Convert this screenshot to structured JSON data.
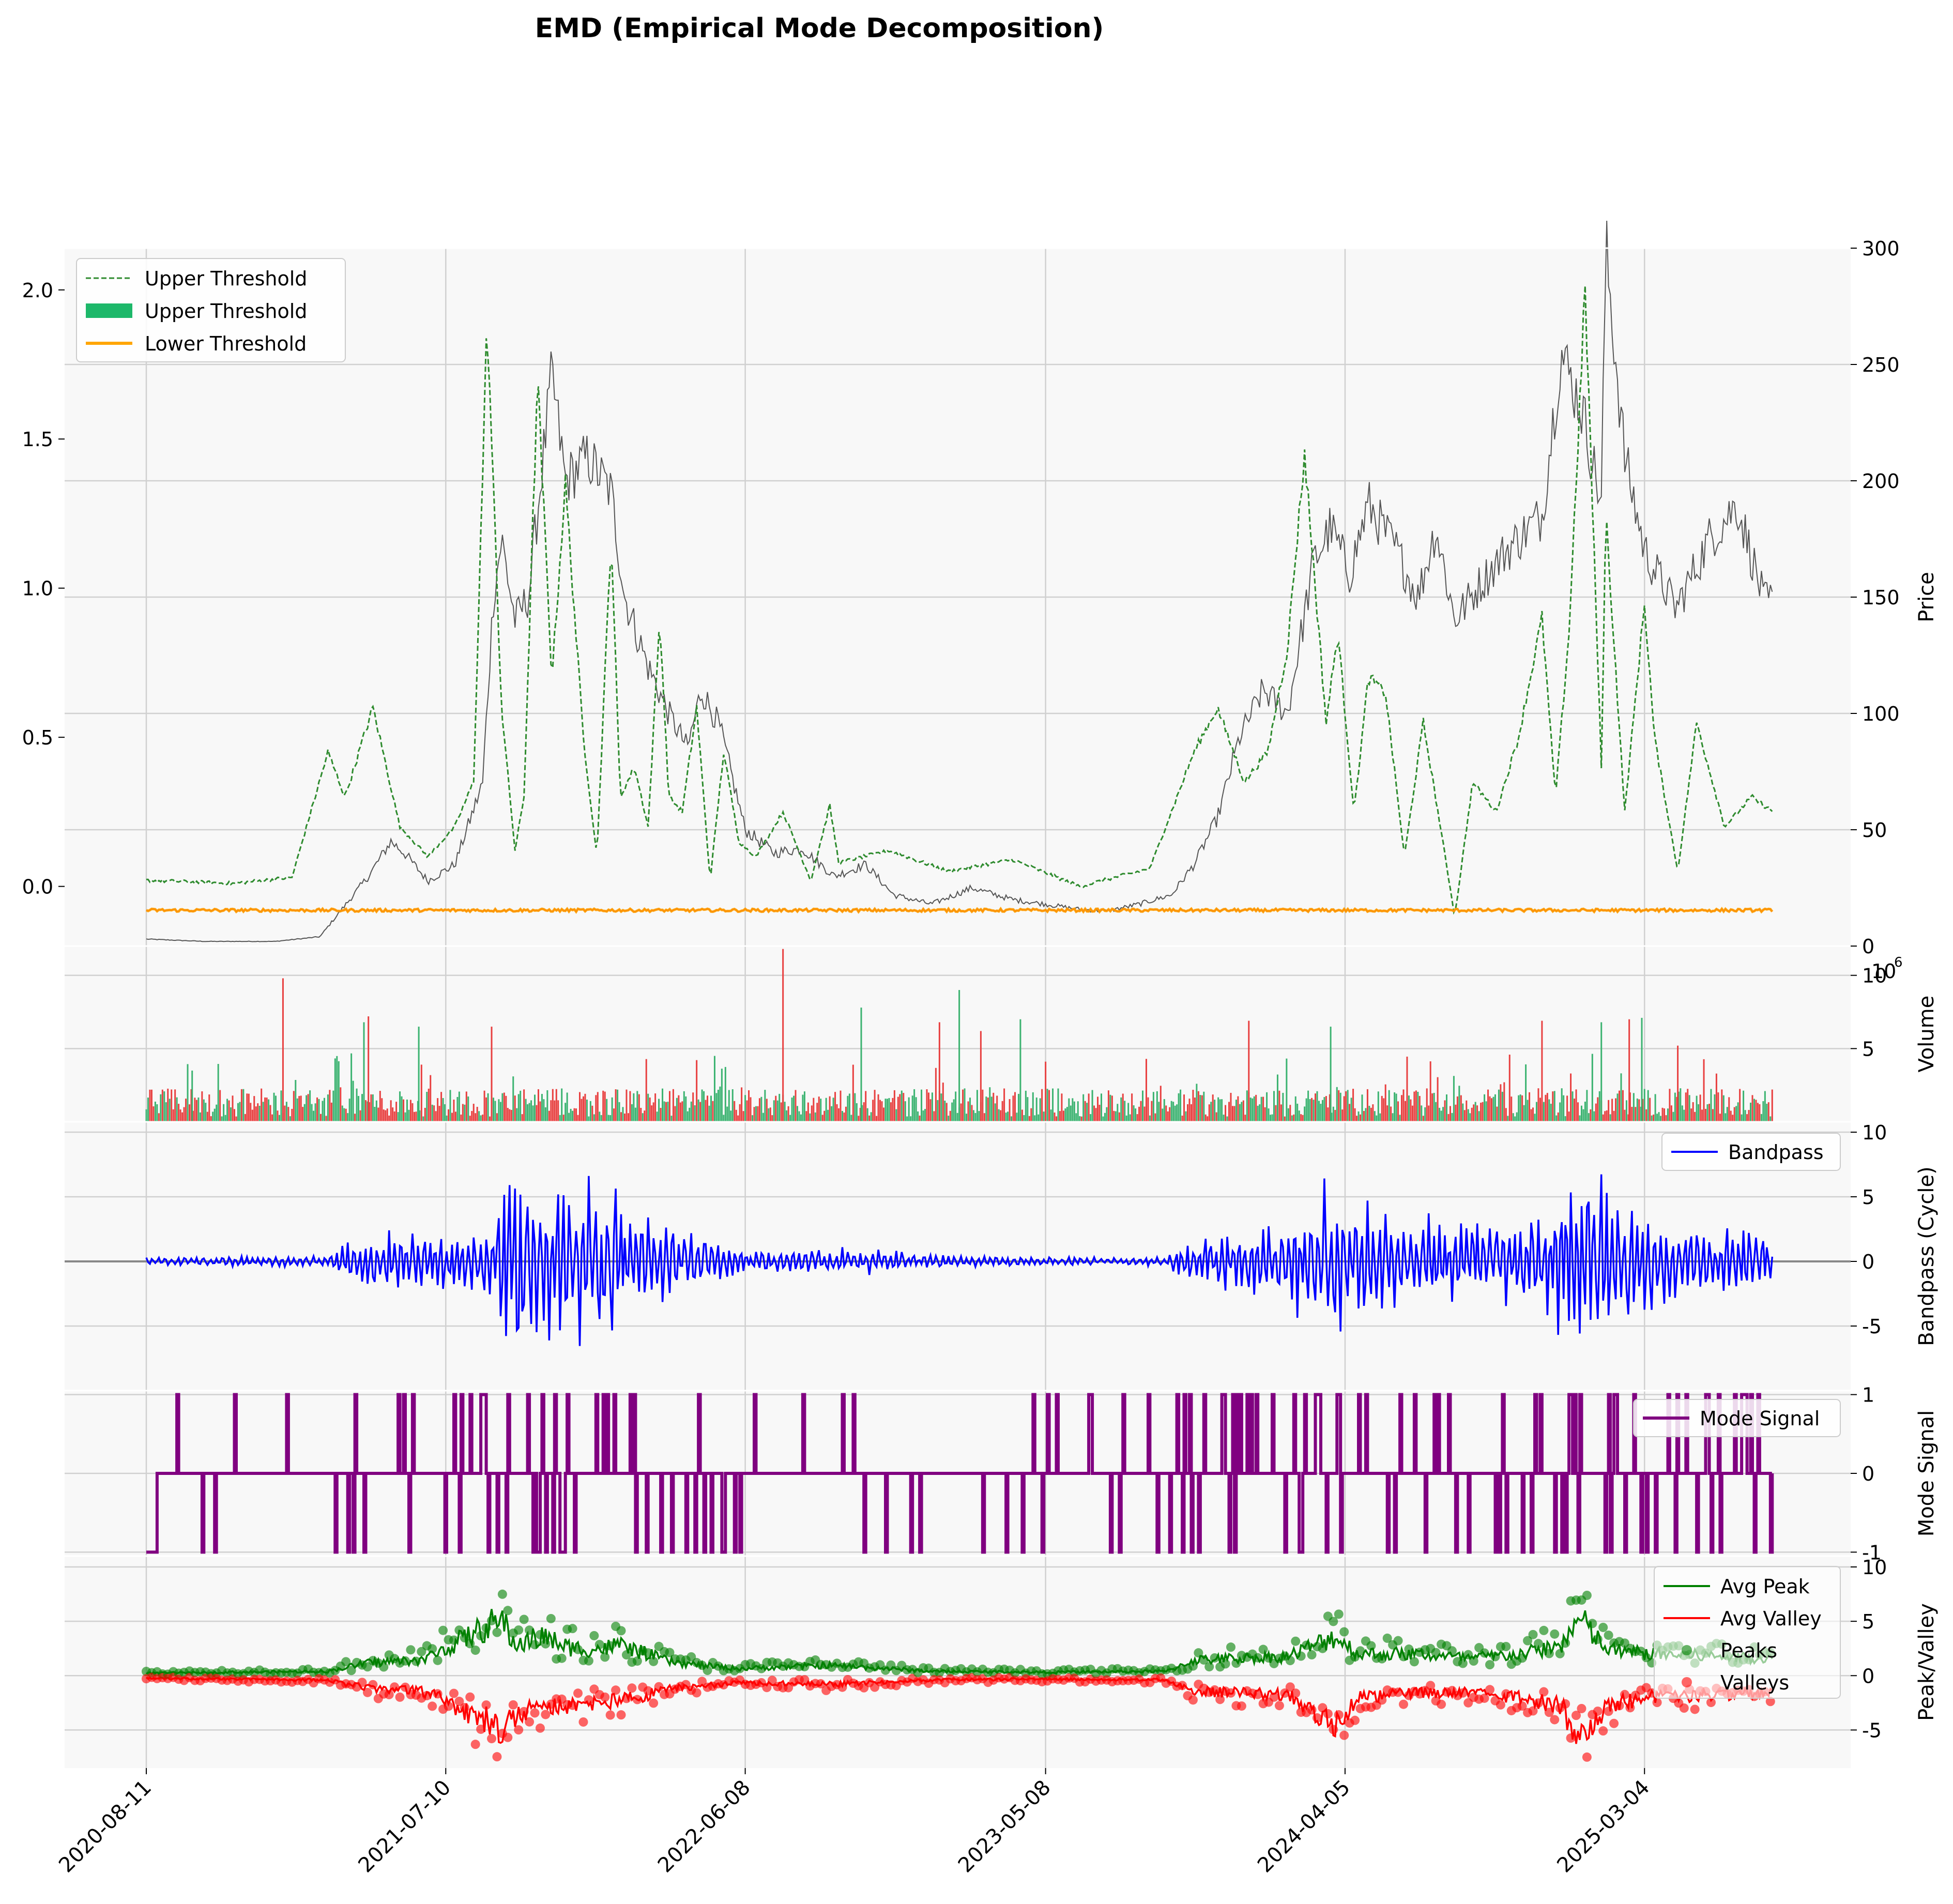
{
  "title": "EMD (Empirical Mode Decomposition)",
  "colors": {
    "panel_bg": "#f8f8f8",
    "grid": "#d0d0d0",
    "candle": "#555555",
    "threshold_green": "#2e8b2e",
    "threshold_fill": "#1db86a",
    "lower_orange": "#ffa500",
    "volume_up": "#3cb371",
    "volume_down": "#e84040",
    "bandpass": "#0000ff",
    "zero_line": "#888888",
    "mode_signal": "#800080",
    "peak": "#008000",
    "valley": "#ff0000"
  },
  "x_axis": {
    "ticks": [
      "2020-08-11",
      "2021-07-10",
      "2022-06-08",
      "2023-05-08",
      "2024-04-05",
      "2025-03-04"
    ]
  },
  "chart_data": [
    {
      "id": "price",
      "type": "line",
      "ylabel": "Price",
      "y_left_ticks": [
        "0.0",
        "0.5",
        "1.0",
        "1.5",
        "2.0"
      ],
      "y_right_ticks": [
        "0",
        "50",
        "100",
        "150",
        "200",
        "250",
        "300"
      ],
      "ylim_left": [
        -0.2,
        2.14
      ],
      "ylim_right": [
        0,
        300
      ],
      "legend": [
        "Upper Threshold",
        "Upper Threshold",
        "Lower Threshold"
      ],
      "legend_position": "top-left",
      "series": [
        {
          "name": "Price",
          "axis": "right",
          "x": [
            "2020-08-11",
            "2020-10-15",
            "2021-01-01",
            "2021-02-20",
            "2021-04-15",
            "2021-05-10",
            "2021-05-25",
            "2021-06-20",
            "2021-07-20",
            "2021-08-20",
            "2021-09-01",
            "2021-09-10",
            "2021-09-25",
            "2021-10-10",
            "2021-11-05",
            "2021-11-20",
            "2021-12-15",
            "2022-01-10",
            "2022-01-25",
            "2022-02-20",
            "2022-03-15",
            "2022-04-05",
            "2022-04-20",
            "2022-05-10",
            "2022-06-08",
            "2022-07-10",
            "2022-08-10",
            "2022-09-15",
            "2022-10-20",
            "2022-11-20",
            "2023-01-01",
            "2023-02-15",
            "2023-04-01",
            "2023-05-08",
            "2023-06-10",
            "2023-07-15",
            "2023-08-20",
            "2023-09-25",
            "2023-10-20",
            "2023-11-15",
            "2023-12-10",
            "2024-01-05",
            "2024-02-01",
            "2024-03-01",
            "2024-03-20",
            "2024-04-10",
            "2024-05-01",
            "2024-06-01",
            "2024-06-25",
            "2024-07-15",
            "2024-08-05",
            "2024-09-01",
            "2024-10-01",
            "2024-11-10",
            "2024-12-01",
            "2024-12-25",
            "2025-01-15",
            "2025-01-20",
            "2025-02-10",
            "2025-03-04",
            "2025-04-08",
            "2025-05-15",
            "2025-06-15",
            "2025-07-15"
          ],
          "values": [
            3,
            2,
            2,
            4,
            30,
            45,
            40,
            28,
            35,
            70,
            150,
            175,
            140,
            150,
            245,
            200,
            210,
            195,
            150,
            120,
            100,
            85,
            110,
            95,
            50,
            40,
            42,
            30,
            35,
            22,
            18,
            25,
            20,
            18,
            16,
            15,
            18,
            22,
            35,
            55,
            90,
            110,
            100,
            165,
            180,
            160,
            190,
            170,
            150,
            180,
            140,
            155,
            170,
            185,
            255,
            230,
            190,
            300,
            210,
            170,
            145,
            175,
            190,
            148
          ]
        },
        {
          "name": "Upper Threshold",
          "axis": "left",
          "x": [
            "2020-08-11",
            "2020-11-15",
            "2021-01-20",
            "2021-03-01",
            "2021-03-20",
            "2021-04-20",
            "2021-05-20",
            "2021-06-20",
            "2021-07-20",
            "2021-08-10",
            "2021-08-25",
            "2021-09-10",
            "2021-09-25",
            "2021-10-05",
            "2021-10-20",
            "2021-11-05",
            "2021-11-20",
            "2021-12-10",
            "2021-12-25",
            "2022-01-10",
            "2022-01-20",
            "2022-02-05",
            "2022-02-20",
            "2022-03-05",
            "2022-03-15",
            "2022-03-30",
            "2022-04-15",
            "2022-04-30",
            "2022-05-15",
            "2022-06-01",
            "2022-06-20",
            "2022-07-20",
            "2022-08-20",
            "2022-09-10",
            "2022-09-20",
            "2022-11-15",
            "2023-01-20",
            "2023-04-01",
            "2023-06-15",
            "2023-09-01",
            "2023-10-20",
            "2023-11-15",
            "2023-12-15",
            "2024-01-10",
            "2024-02-01",
            "2024-02-20",
            "2024-03-15",
            "2024-03-28",
            "2024-04-15",
            "2024-05-01",
            "2024-05-20",
            "2024-06-10",
            "2024-07-01",
            "2024-07-20",
            "2024-08-05",
            "2024-08-25",
            "2024-09-20",
            "2024-10-15",
            "2024-11-10",
            "2024-11-25",
            "2024-12-10",
            "2024-12-28",
            "2025-01-15",
            "2025-01-20",
            "2025-02-10",
            "2025-03-04",
            "2025-03-15",
            "2025-04-10",
            "2025-05-01",
            "2025-06-01",
            "2025-07-01",
            "2025-07-25"
          ],
          "values": [
            0.02,
            0.01,
            0.03,
            0.45,
            0.3,
            0.6,
            0.2,
            0.1,
            0.2,
            0.35,
            1.9,
            0.6,
            0.12,
            0.3,
            1.7,
            0.7,
            1.35,
            0.5,
            0.1,
            1.18,
            0.3,
            0.4,
            0.2,
            0.9,
            0.3,
            0.25,
            0.6,
            0.02,
            0.45,
            0.15,
            0.1,
            0.25,
            0.02,
            0.27,
            0.08,
            0.12,
            0.05,
            0.09,
            0.0,
            0.06,
            0.45,
            0.6,
            0.35,
            0.45,
            0.8,
            1.45,
            0.55,
            0.85,
            0.25,
            0.7,
            0.65,
            0.1,
            0.55,
            0.2,
            -0.1,
            0.35,
            0.25,
            0.5,
            0.9,
            0.3,
            0.85,
            2.0,
            0.4,
            1.25,
            0.25,
            0.95,
            0.5,
            0.05,
            0.55,
            0.2,
            0.3,
            0.25
          ]
        },
        {
          "name": "Lower Threshold",
          "axis": "left",
          "x": [
            "2020-08-11",
            "2025-07-25"
          ],
          "values": [
            -0.08,
            -0.08
          ]
        }
      ]
    },
    {
      "id": "volume",
      "type": "bar",
      "ylabel": "Volume",
      "scale_label": "1e6",
      "y_right_ticks": [
        "5",
        "10"
      ],
      "ylim": [
        0,
        12
      ],
      "spikes": {
        "x": [
          "2020-10-01",
          "2021-01-10",
          "2021-04-10",
          "2021-04-15",
          "2021-06-10",
          "2021-08-30",
          "2022-05-05",
          "2022-07-20",
          "2022-10-15",
          "2023-01-10",
          "2023-02-01",
          "2023-02-25",
          "2023-04-10",
          "2023-12-20",
          "2024-03-20",
          "2024-11-10",
          "2025-01-15",
          "2025-02-15",
          "2025-03-01",
          "2025-04-10"
        ],
        "values": [
          3.5,
          9.8,
          6.8,
          7.2,
          6.5,
          6.5,
          4.5,
          11.8,
          7.8,
          6.8,
          9,
          6.2,
          7,
          6.9,
          6.5,
          6.9,
          6.8,
          7,
          7.1,
          5.2
        ]
      },
      "base_level": 1.2
    },
    {
      "id": "bandpass",
      "type": "line",
      "ylabel": "Bandpass (Cycle)",
      "y_right_ticks": [
        "-5",
        "0",
        "5",
        "10"
      ],
      "ylim": [
        -10,
        10.8
      ],
      "legend": [
        "Bandpass"
      ],
      "legend_position": "top-right",
      "envelope": {
        "x": [
          "2020-08-11",
          "2021-03-01",
          "2021-03-20",
          "2021-05-15",
          "2021-06-15",
          "2021-09-01",
          "2021-09-20",
          "2021-10-20",
          "2021-12-10",
          "2022-01-20",
          "2022-03-20",
          "2022-05-20",
          "2022-07-20",
          "2022-10-01",
          "2023-01-01",
          "2023-05-08",
          "2023-08-01",
          "2023-09-20",
          "2023-10-20",
          "2023-12-15",
          "2024-02-01",
          "2024-03-20",
          "2024-04-20",
          "2024-06-20",
          "2024-08-20",
          "2024-10-20",
          "2024-12-01",
          "2024-12-20",
          "2025-01-20",
          "2025-02-20",
          "2025-03-10",
          "2025-05-01",
          "2025-07-25"
        ],
        "values": [
          0.3,
          0.5,
          1.5,
          2.6,
          2.2,
          3.2,
          9.5,
          6.5,
          7.0,
          6.0,
          3.0,
          1.2,
          0.8,
          1.3,
          0.5,
          0.4,
          0.3,
          0.5,
          2.2,
          2.5,
          4.0,
          7.0,
          5.5,
          4.0,
          3.5,
          3.5,
          6.0,
          9.5,
          6.5,
          6.2,
          5.5,
          3.0,
          2.5
        ]
      }
    },
    {
      "id": "mode_signal",
      "type": "line",
      "ylabel": "Mode Signal",
      "y_right_ticks": [
        "-1",
        "0",
        "1"
      ],
      "ylim": [
        -1,
        1
      ],
      "legend": [
        "Mode Signal"
      ],
      "legend_position": "top-right",
      "levels": [
        -1,
        0,
        1
      ]
    },
    {
      "id": "peak_valley",
      "type": "scatter",
      "ylabel": "Peak/Valley",
      "y_right_ticks": [
        "-5",
        "0",
        "5",
        "10"
      ],
      "ylim": [
        -8.5,
        11
      ],
      "legend": [
        "Avg Peak",
        "Avg Valley",
        "Peaks",
        "Valleys"
      ],
      "legend_position": "top-right",
      "peak_envelope": {
        "x": [
          "2020-08-11",
          "2021-03-01",
          "2021-04-15",
          "2021-06-15",
          "2021-09-10",
          "2021-09-25",
          "2021-10-25",
          "2021-11-25",
          "2021-12-25",
          "2022-01-20",
          "2022-03-20",
          "2022-06-01",
          "2022-09-10",
          "2023-01-01",
          "2023-05-08",
          "2023-09-20",
          "2023-10-20",
          "2024-02-01",
          "2024-03-25",
          "2024-04-20",
          "2024-06-20",
          "2024-08-20",
          "2024-10-20",
          "2024-12-01",
          "2024-12-22",
          "2025-01-20",
          "2025-03-10",
          "2025-07-25"
        ],
        "values": [
          0.3,
          0.5,
          1.5,
          1.8,
          6.5,
          3.5,
          4.5,
          3.2,
          3.0,
          3.5,
          1.5,
          0.8,
          1.2,
          0.5,
          0.4,
          0.5,
          1.8,
          2.2,
          4.5,
          2.5,
          2.5,
          2.0,
          2.5,
          3.5,
          6.5,
          3.0,
          2.5,
          2.0
        ]
      },
      "valley_envelope": {
        "x": [
          "2020-08-11",
          "2021-03-01",
          "2021-04-15",
          "2021-06-15",
          "2021-09-10",
          "2021-09-25",
          "2021-10-25",
          "2021-11-25",
          "2021-12-25",
          "2022-01-20",
          "2022-03-20",
          "2022-06-01",
          "2022-09-10",
          "2023-01-01",
          "2023-05-08",
          "2023-09-20",
          "2023-10-20",
          "2024-02-01",
          "2024-03-25",
          "2024-04-20",
          "2024-06-20",
          "2024-08-20",
          "2024-10-20",
          "2024-12-01",
          "2024-12-22",
          "2025-01-20",
          "2025-03-10",
          "2025-07-25"
        ],
        "values": [
          -0.3,
          -0.5,
          -1.5,
          -1.8,
          -6.0,
          -4.5,
          -3.5,
          -3.5,
          -3.0,
          -3.0,
          -1.5,
          -0.8,
          -1.0,
          -0.5,
          -0.4,
          -0.5,
          -1.8,
          -2.2,
          -5.5,
          -2.5,
          -2.0,
          -2.0,
          -2.5,
          -3.5,
          -7.5,
          -3.5,
          -2.5,
          -2.0
        ]
      }
    }
  ]
}
